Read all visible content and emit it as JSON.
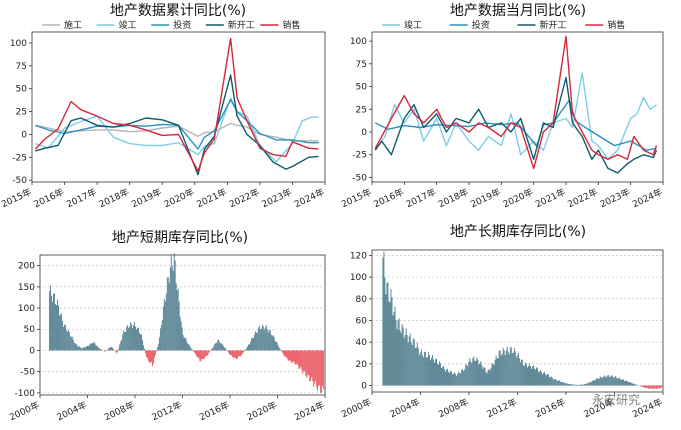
{
  "watermark": "永安研究",
  "chart_data": [
    {
      "type": "line",
      "title": "地产数据累计同比(%)",
      "x_ticks": [
        "2015年",
        "2016年",
        "2017年",
        "2018年",
        "2019年",
        "2020年",
        "2021年",
        "2022年",
        "2023年",
        "2024年"
      ],
      "yticks": [
        100,
        75,
        50,
        25,
        0,
        -25,
        -50
      ],
      "ylim": [
        -52,
        112
      ],
      "xlim": [
        2015.0,
        2024.0
      ],
      "legend_position": "top",
      "series": [
        {
          "name": "施工",
          "color": "#b5b5b5",
          "x": [
            2015.1,
            2015.5,
            2016,
            2016.5,
            2017,
            2017.5,
            2018,
            2018.5,
            2019,
            2019.5,
            2020.1,
            2020.3,
            2020.6,
            2021.1,
            2021.3,
            2021.6,
            2022,
            2022.5,
            2023,
            2023.5,
            2023.8
          ],
          "y": [
            10,
            7,
            3,
            4,
            5,
            5,
            3,
            4,
            7,
            9,
            -2,
            2,
            3,
            12,
            10,
            8,
            0,
            -3,
            -7,
            -7,
            -7
          ]
        },
        {
          "name": "竣工",
          "color": "#7fcce8",
          "x": [
            2015.1,
            2015.5,
            2016,
            2016.5,
            2017,
            2017.5,
            2018,
            2018.5,
            2019,
            2019.5,
            2020.1,
            2020.3,
            2020.6,
            2021.1,
            2021.3,
            2021.6,
            2022,
            2022.5,
            2023,
            2023.3,
            2023.6,
            2023.8
          ],
          "y": [
            -10,
            -15,
            7,
            14,
            20,
            -3,
            -10,
            -12,
            -12,
            -9,
            -22,
            -13,
            -10,
            40,
            25,
            20,
            -12,
            -30,
            -10,
            15,
            19,
            19
          ]
        },
        {
          "name": "投资",
          "color": "#2b93bd",
          "x": [
            2015.1,
            2015.5,
            2016,
            2016.5,
            2017,
            2017.5,
            2018,
            2018.5,
            2019,
            2019.5,
            2020.1,
            2020.3,
            2020.6,
            2021.1,
            2021.3,
            2021.6,
            2022,
            2022.5,
            2023,
            2023.5,
            2023.8
          ],
          "y": [
            10,
            5,
            1,
            5,
            9,
            8,
            10,
            9,
            11,
            10,
            -16,
            -3,
            4,
            38,
            25,
            15,
            1,
            -6,
            -6,
            -9,
            -9
          ]
        },
        {
          "name": "新开工",
          "color": "#0f5a6b",
          "x": [
            2015.1,
            2015.4,
            2015.8,
            2016.2,
            2016.5,
            2017,
            2017.5,
            2018,
            2018.5,
            2019,
            2019.5,
            2020.1,
            2020.3,
            2020.6,
            2021.1,
            2021.3,
            2021.6,
            2022,
            2022.4,
            2022.8,
            2023,
            2023.5,
            2023.8
          ],
          "y": [
            -18,
            -15,
            -12,
            15,
            18,
            10,
            8,
            12,
            18,
            16,
            10,
            -44,
            -16,
            -2,
            65,
            20,
            0,
            -12,
            -30,
            -38,
            -35,
            -25,
            -24
          ]
        },
        {
          "name": "销售",
          "color": "#d9263a",
          "x": [
            2015.1,
            2015.4,
            2015.8,
            2016.2,
            2016.5,
            2017,
            2017.5,
            2018,
            2018.5,
            2019,
            2019.5,
            2020.1,
            2020.3,
            2020.6,
            2021.1,
            2021.3,
            2021.6,
            2022,
            2022.4,
            2022.8,
            2023,
            2023.5,
            2023.8
          ],
          "y": [
            -16,
            -5,
            6,
            36,
            27,
            20,
            12,
            10,
            5,
            -1,
            0,
            -40,
            -20,
            -5,
            105,
            40,
            15,
            -15,
            -22,
            -24,
            -8,
            -15,
            -16
          ]
        }
      ]
    },
    {
      "type": "line",
      "title": "地产数据当月同比(%)",
      "x_ticks": [
        "2015年",
        "2016年",
        "2017年",
        "2018年",
        "2019年",
        "2020年",
        "2021年",
        "2022年",
        "2023年",
        "2024年"
      ],
      "yticks": [
        100,
        75,
        50,
        25,
        0,
        -25,
        -50
      ],
      "ylim": [
        -55,
        110
      ],
      "xlim": [
        2015.0,
        2024.0
      ],
      "legend_position": "top",
      "series": [
        {
          "name": "竣工",
          "color": "#7fcce8",
          "x": [
            2015.1,
            2015.4,
            2015.7,
            2016,
            2016.3,
            2016.6,
            2017,
            2017.3,
            2017.6,
            2018,
            2018.3,
            2018.6,
            2019,
            2019.3,
            2019.6,
            2020,
            2020.3,
            2020.6,
            2021,
            2021.2,
            2021.5,
            2021.8,
            2022,
            2022.3,
            2022.6,
            2023,
            2023.2,
            2023.4,
            2023.6,
            2023.8
          ],
          "y": [
            -20,
            -5,
            30,
            10,
            25,
            -10,
            15,
            -15,
            10,
            -10,
            -20,
            -5,
            -15,
            20,
            -25,
            -10,
            -20,
            10,
            15,
            5,
            65,
            -10,
            -15,
            -30,
            -20,
            15,
            20,
            38,
            25,
            30
          ]
        },
        {
          "name": "投资",
          "color": "#2b93bd",
          "x": [
            2015.1,
            2015.5,
            2016,
            2016.5,
            2017,
            2017.5,
            2018,
            2018.5,
            2019,
            2019.5,
            2020.1,
            2020.3,
            2020.6,
            2021.1,
            2021.3,
            2021.6,
            2022,
            2022.5,
            2023,
            2023.5,
            2023.8
          ],
          "y": [
            10,
            3,
            7,
            5,
            8,
            7,
            6,
            10,
            8,
            10,
            -16,
            8,
            10,
            35,
            12,
            5,
            -4,
            -15,
            -10,
            -20,
            -18
          ]
        },
        {
          "name": "新开工",
          "color": "#0f5a6b",
          "x": [
            2015.1,
            2015.3,
            2015.6,
            2016,
            2016.3,
            2016.6,
            2017,
            2017.3,
            2017.6,
            2018,
            2018.3,
            2018.6,
            2019,
            2019.3,
            2019.6,
            2020,
            2020.3,
            2020.6,
            2021,
            2021.2,
            2021.5,
            2021.8,
            2022,
            2022.3,
            2022.6,
            2022.9,
            2023.1,
            2023.4,
            2023.7,
            2023.8
          ],
          "y": [
            -20,
            -10,
            -25,
            15,
            30,
            5,
            20,
            0,
            15,
            10,
            25,
            5,
            10,
            0,
            15,
            -30,
            10,
            5,
            60,
            10,
            -5,
            -30,
            -20,
            -40,
            -45,
            -35,
            -30,
            -25,
            -28,
            -20
          ]
        },
        {
          "name": "销售",
          "color": "#d9263a",
          "x": [
            2015.1,
            2015.3,
            2015.6,
            2016,
            2016.3,
            2016.6,
            2017,
            2017.3,
            2017.6,
            2018,
            2018.3,
            2018.6,
            2019,
            2019.3,
            2019.6,
            2020,
            2020.3,
            2020.6,
            2021,
            2021.2,
            2021.5,
            2021.8,
            2022,
            2022.3,
            2022.6,
            2022.9,
            2023.1,
            2023.4,
            2023.7,
            2023.8
          ],
          "y": [
            -18,
            -5,
            15,
            40,
            20,
            10,
            25,
            5,
            10,
            0,
            10,
            5,
            -5,
            10,
            5,
            -40,
            0,
            10,
            105,
            20,
            0,
            -20,
            -25,
            -30,
            -25,
            -30,
            -5,
            -20,
            -25,
            -15
          ]
        }
      ]
    },
    {
      "type": "bar",
      "title": "地产短期库存同比(%)",
      "x_ticks": [
        "2000年",
        "2004年",
        "2008年",
        "2012年",
        "2016年",
        "2020年",
        "2024年"
      ],
      "yticks": [
        200,
        150,
        100,
        50,
        0,
        -50,
        -100
      ],
      "ylim": [
        -105,
        225
      ],
      "xlim": [
        2000.0,
        2024.0
      ],
      "pos_color": "#3d6f82",
      "neg_color": "#e8404b",
      "knots": [
        [
          2000.8,
          140
        ],
        [
          2001.4,
          115
        ],
        [
          2002.0,
          60
        ],
        [
          2002.5,
          40
        ],
        [
          2003.0,
          15
        ],
        [
          2003.5,
          5
        ],
        [
          2004.0,
          10
        ],
        [
          2004.5,
          20
        ],
        [
          2005.0,
          5
        ],
        [
          2005.5,
          -3
        ],
        [
          2006.0,
          10
        ],
        [
          2006.5,
          -8
        ],
        [
          2007.0,
          40
        ],
        [
          2007.5,
          60
        ],
        [
          2008.0,
          60
        ],
        [
          2008.5,
          40
        ],
        [
          2009.0,
          -20
        ],
        [
          2009.5,
          -35
        ],
        [
          2010.0,
          20
        ],
        [
          2010.5,
          120
        ],
        [
          2011.0,
          200
        ],
        [
          2011.3,
          215
        ],
        [
          2011.6,
          140
        ],
        [
          2012.0,
          40
        ],
        [
          2012.5,
          15
        ],
        [
          2013.0,
          -5
        ],
        [
          2013.5,
          -25
        ],
        [
          2014.0,
          -15
        ],
        [
          2014.5,
          5
        ],
        [
          2015.0,
          25
        ],
        [
          2015.5,
          10
        ],
        [
          2016.0,
          -10
        ],
        [
          2016.5,
          -20
        ],
        [
          2017.0,
          -10
        ],
        [
          2017.5,
          10
        ],
        [
          2018.0,
          35
        ],
        [
          2018.5,
          55
        ],
        [
          2019.0,
          55
        ],
        [
          2019.5,
          40
        ],
        [
          2020.0,
          15
        ],
        [
          2020.5,
          -10
        ],
        [
          2021.0,
          -25
        ],
        [
          2021.5,
          -30
        ],
        [
          2022.0,
          -45
        ],
        [
          2022.5,
          -60
        ],
        [
          2023.0,
          -75
        ],
        [
          2023.5,
          -90
        ],
        [
          2023.9,
          -95
        ]
      ]
    },
    {
      "type": "bar",
      "title": "地产长期库存同比(%)",
      "x_ticks": [
        "2000年",
        "2004年",
        "2008年",
        "2012年",
        "2016年",
        "2020年",
        "2024年"
      ],
      "yticks": [
        120,
        100,
        80,
        60,
        40,
        20,
        0
      ],
      "ylim": [
        -6,
        125
      ],
      "xlim": [
        2000.0,
        2024.0
      ],
      "pos_color": "#3d6f82",
      "neg_color": "#e8404b",
      "knots": [
        [
          2000.9,
          118
        ],
        [
          2001.2,
          90
        ],
        [
          2001.6,
          80
        ],
        [
          2002.0,
          60
        ],
        [
          2002.6,
          50
        ],
        [
          2003.0,
          45
        ],
        [
          2003.6,
          38
        ],
        [
          2004.0,
          30
        ],
        [
          2004.6,
          28
        ],
        [
          2005.0,
          25
        ],
        [
          2005.6,
          20
        ],
        [
          2006.0,
          15
        ],
        [
          2006.6,
          12
        ],
        [
          2007.0,
          10
        ],
        [
          2007.6,
          15
        ],
        [
          2008.0,
          22
        ],
        [
          2008.5,
          25
        ],
        [
          2009.0,
          20
        ],
        [
          2009.5,
          12
        ],
        [
          2010.0,
          20
        ],
        [
          2010.5,
          30
        ],
        [
          2011.0,
          32
        ],
        [
          2011.6,
          33
        ],
        [
          2012.0,
          28
        ],
        [
          2012.5,
          20
        ],
        [
          2013.0,
          18
        ],
        [
          2013.5,
          16
        ],
        [
          2014.0,
          12
        ],
        [
          2014.5,
          10
        ],
        [
          2015.0,
          6
        ],
        [
          2015.5,
          4
        ],
        [
          2016.0,
          2
        ],
        [
          2016.5,
          1
        ],
        [
          2017.0,
          0.5
        ],
        [
          2017.5,
          1
        ],
        [
          2018.0,
          3
        ],
        [
          2018.5,
          6
        ],
        [
          2019.0,
          8
        ],
        [
          2019.5,
          9
        ],
        [
          2020.0,
          8
        ],
        [
          2020.5,
          6
        ],
        [
          2021.0,
          4
        ],
        [
          2021.5,
          2
        ],
        [
          2022.0,
          0
        ],
        [
          2022.5,
          -2
        ],
        [
          2023.0,
          -3
        ],
        [
          2023.5,
          -3
        ],
        [
          2023.9,
          -2
        ]
      ]
    }
  ]
}
